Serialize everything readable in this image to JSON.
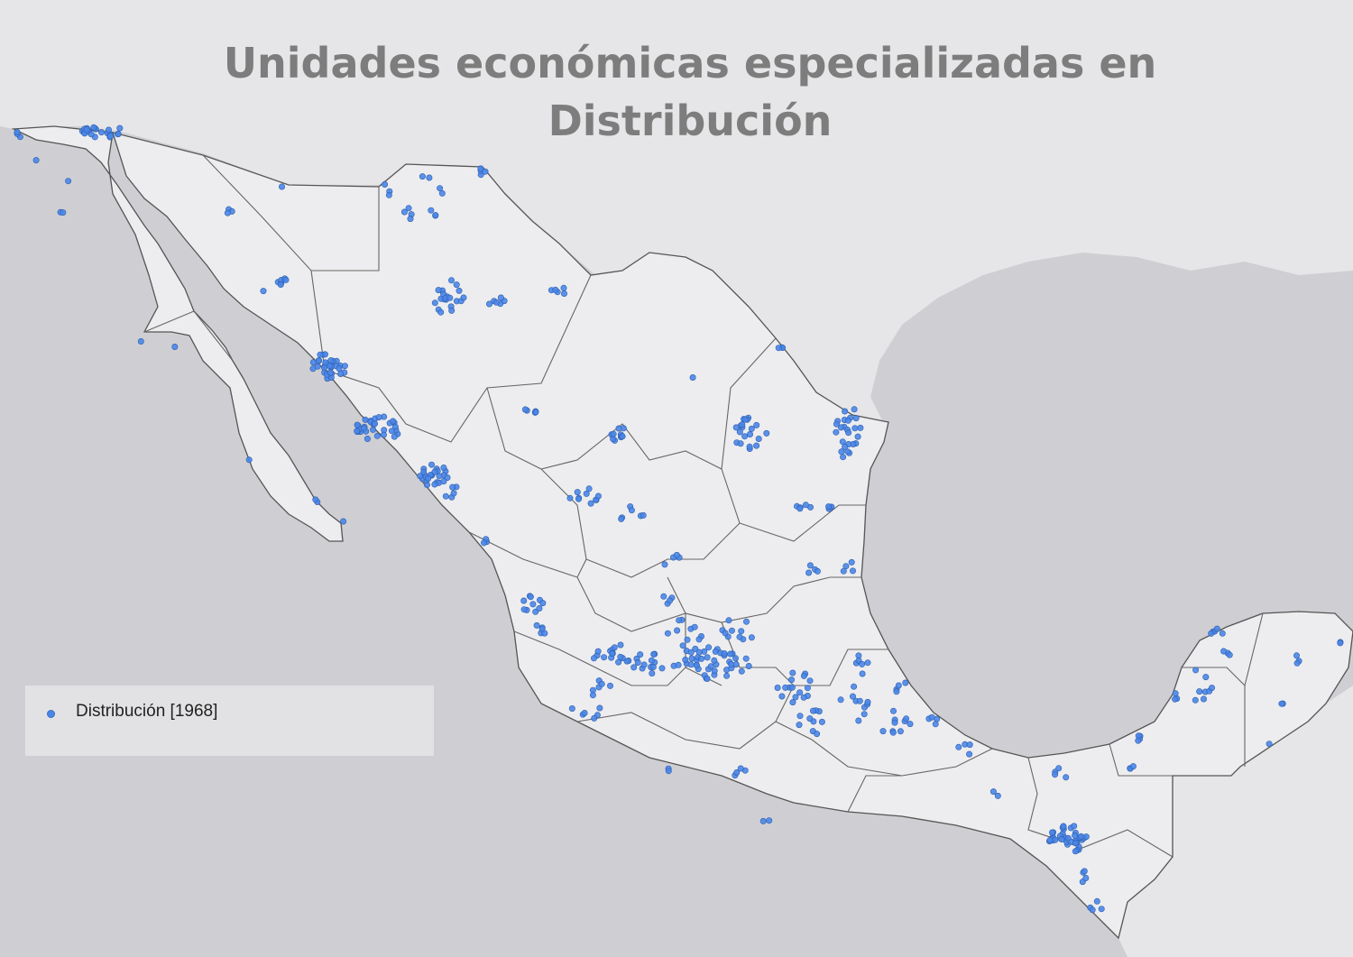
{
  "title_line1": "Unidades económicas especializadas en",
  "title_line2": "Distribución",
  "legend": {
    "label": "Distribución [1968]",
    "marker_color": "#4a86e8"
  },
  "colors": {
    "ocean": "#cfcfd3",
    "land_foreign": "#e6e6e8",
    "land_mexico": "#ededef",
    "state_border": "#555555",
    "point": "#4a86e8"
  },
  "map": {
    "country": "México",
    "layers": [
      "basemap",
      "state-boundaries",
      "municipal-boundaries",
      "establishment-points"
    ]
  }
}
